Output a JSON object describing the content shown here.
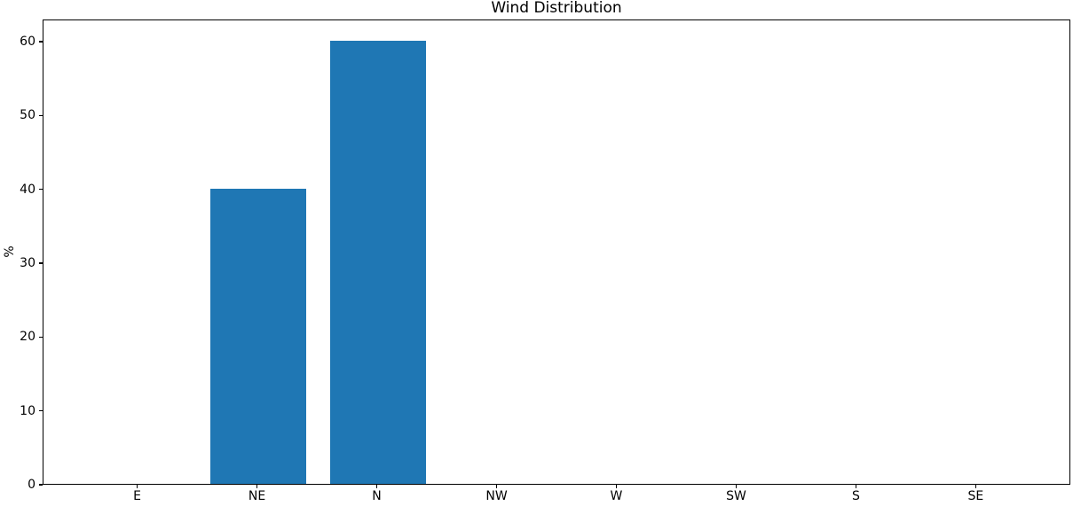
{
  "chart_data": {
    "type": "bar",
    "title": "Wind Distribution",
    "xlabel": "",
    "ylabel": "%",
    "categories": [
      "E",
      "NE",
      "N",
      "NW",
      "W",
      "SW",
      "S",
      "SE"
    ],
    "values": [
      0,
      40,
      60,
      0,
      0,
      0,
      0,
      0
    ],
    "yticks": [
      0,
      10,
      20,
      30,
      40,
      50,
      60
    ],
    "ylim": [
      0,
      63
    ],
    "xlim": [
      -0.79,
      7.79
    ],
    "bar_width": 0.8,
    "bar_color": "#1f77b4",
    "spine_color": "#000000",
    "text_color": "#000000",
    "grid": false,
    "legend": "none",
    "background": "#ffffff"
  }
}
